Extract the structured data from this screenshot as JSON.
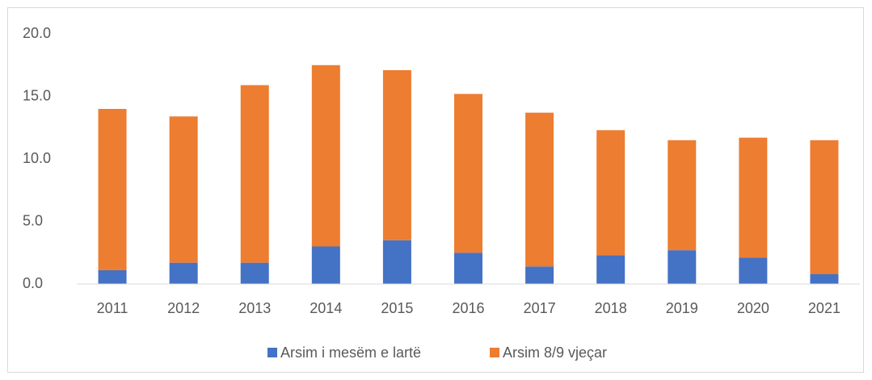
{
  "chart_data": {
    "type": "stacked_bar",
    "categories": [
      "2011",
      "2012",
      "2013",
      "2014",
      "2015",
      "2016",
      "2017",
      "2018",
      "2019",
      "2020",
      "2021"
    ],
    "series": [
      {
        "name": "Arsim i mesëm e lartë",
        "color": "#4472c4",
        "values": [
          1.1,
          1.7,
          1.7,
          3.0,
          3.5,
          2.5,
          1.4,
          2.3,
          2.7,
          2.1,
          0.8
        ]
      },
      {
        "name": "Arsim 8/9 vjeçar",
        "color": "#ed7d31",
        "values": [
          12.9,
          11.7,
          14.2,
          14.5,
          13.6,
          12.7,
          12.3,
          10.0,
          8.8,
          9.6,
          10.7
        ]
      }
    ],
    "ylim": [
      0,
      20
    ],
    "yticks": [
      {
        "value": 0,
        "label": "0.0"
      },
      {
        "value": 5,
        "label": "5.0"
      },
      {
        "value": 10,
        "label": "10.0"
      },
      {
        "value": 15,
        "label": "15.0"
      },
      {
        "value": 20,
        "label": "20.0"
      }
    ],
    "grid": false,
    "legend": "bottom"
  }
}
